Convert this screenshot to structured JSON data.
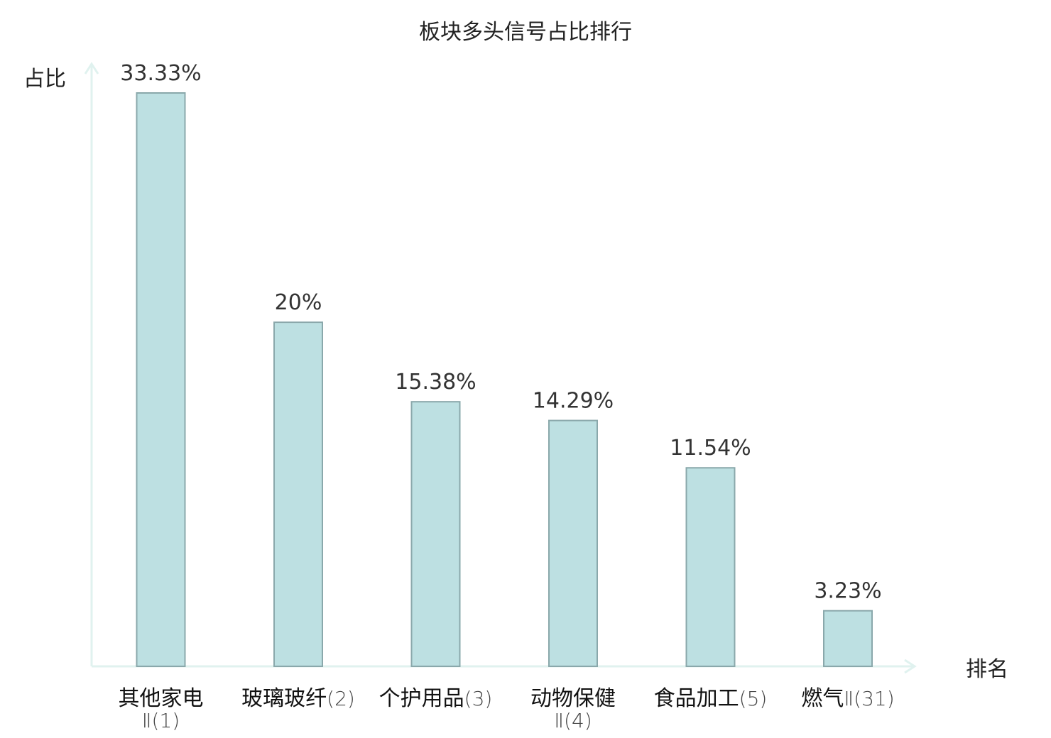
{
  "chart_data": {
    "type": "bar",
    "title": "板块多头信号占比排行",
    "ylabel": "占比",
    "xlabel": "排名",
    "ylim": [
      0,
      34
    ],
    "grid": false,
    "colors": {
      "bar_fill": "#bde0e2",
      "bar_stroke": "#8aa8ab",
      "axis": "#e0f2ef",
      "highlight": "#e0262a"
    },
    "categories": [
      {
        "name": "其他家电",
        "suffix": "Ⅱ(1)",
        "wrap": true,
        "highlight": false
      },
      {
        "name": "玻璃玻纤",
        "suffix": "(2)",
        "wrap": false,
        "highlight": false
      },
      {
        "name": "个护用品",
        "suffix": "(3)",
        "wrap": false,
        "highlight": false
      },
      {
        "name": "动物保健",
        "suffix": "Ⅱ(4)",
        "wrap": true,
        "highlight": false
      },
      {
        "name": "食品加工",
        "suffix": "(5)",
        "wrap": false,
        "highlight": false
      },
      {
        "name": "燃气",
        "suffix": "Ⅱ(31)",
        "wrap": false,
        "highlight": true
      }
    ],
    "values": [
      33.33,
      20,
      15.38,
      14.29,
      11.54,
      3.23
    ],
    "value_labels": [
      "33.33%",
      "20%",
      "15.38%",
      "14.29%",
      "11.54%",
      "3.23%"
    ]
  }
}
